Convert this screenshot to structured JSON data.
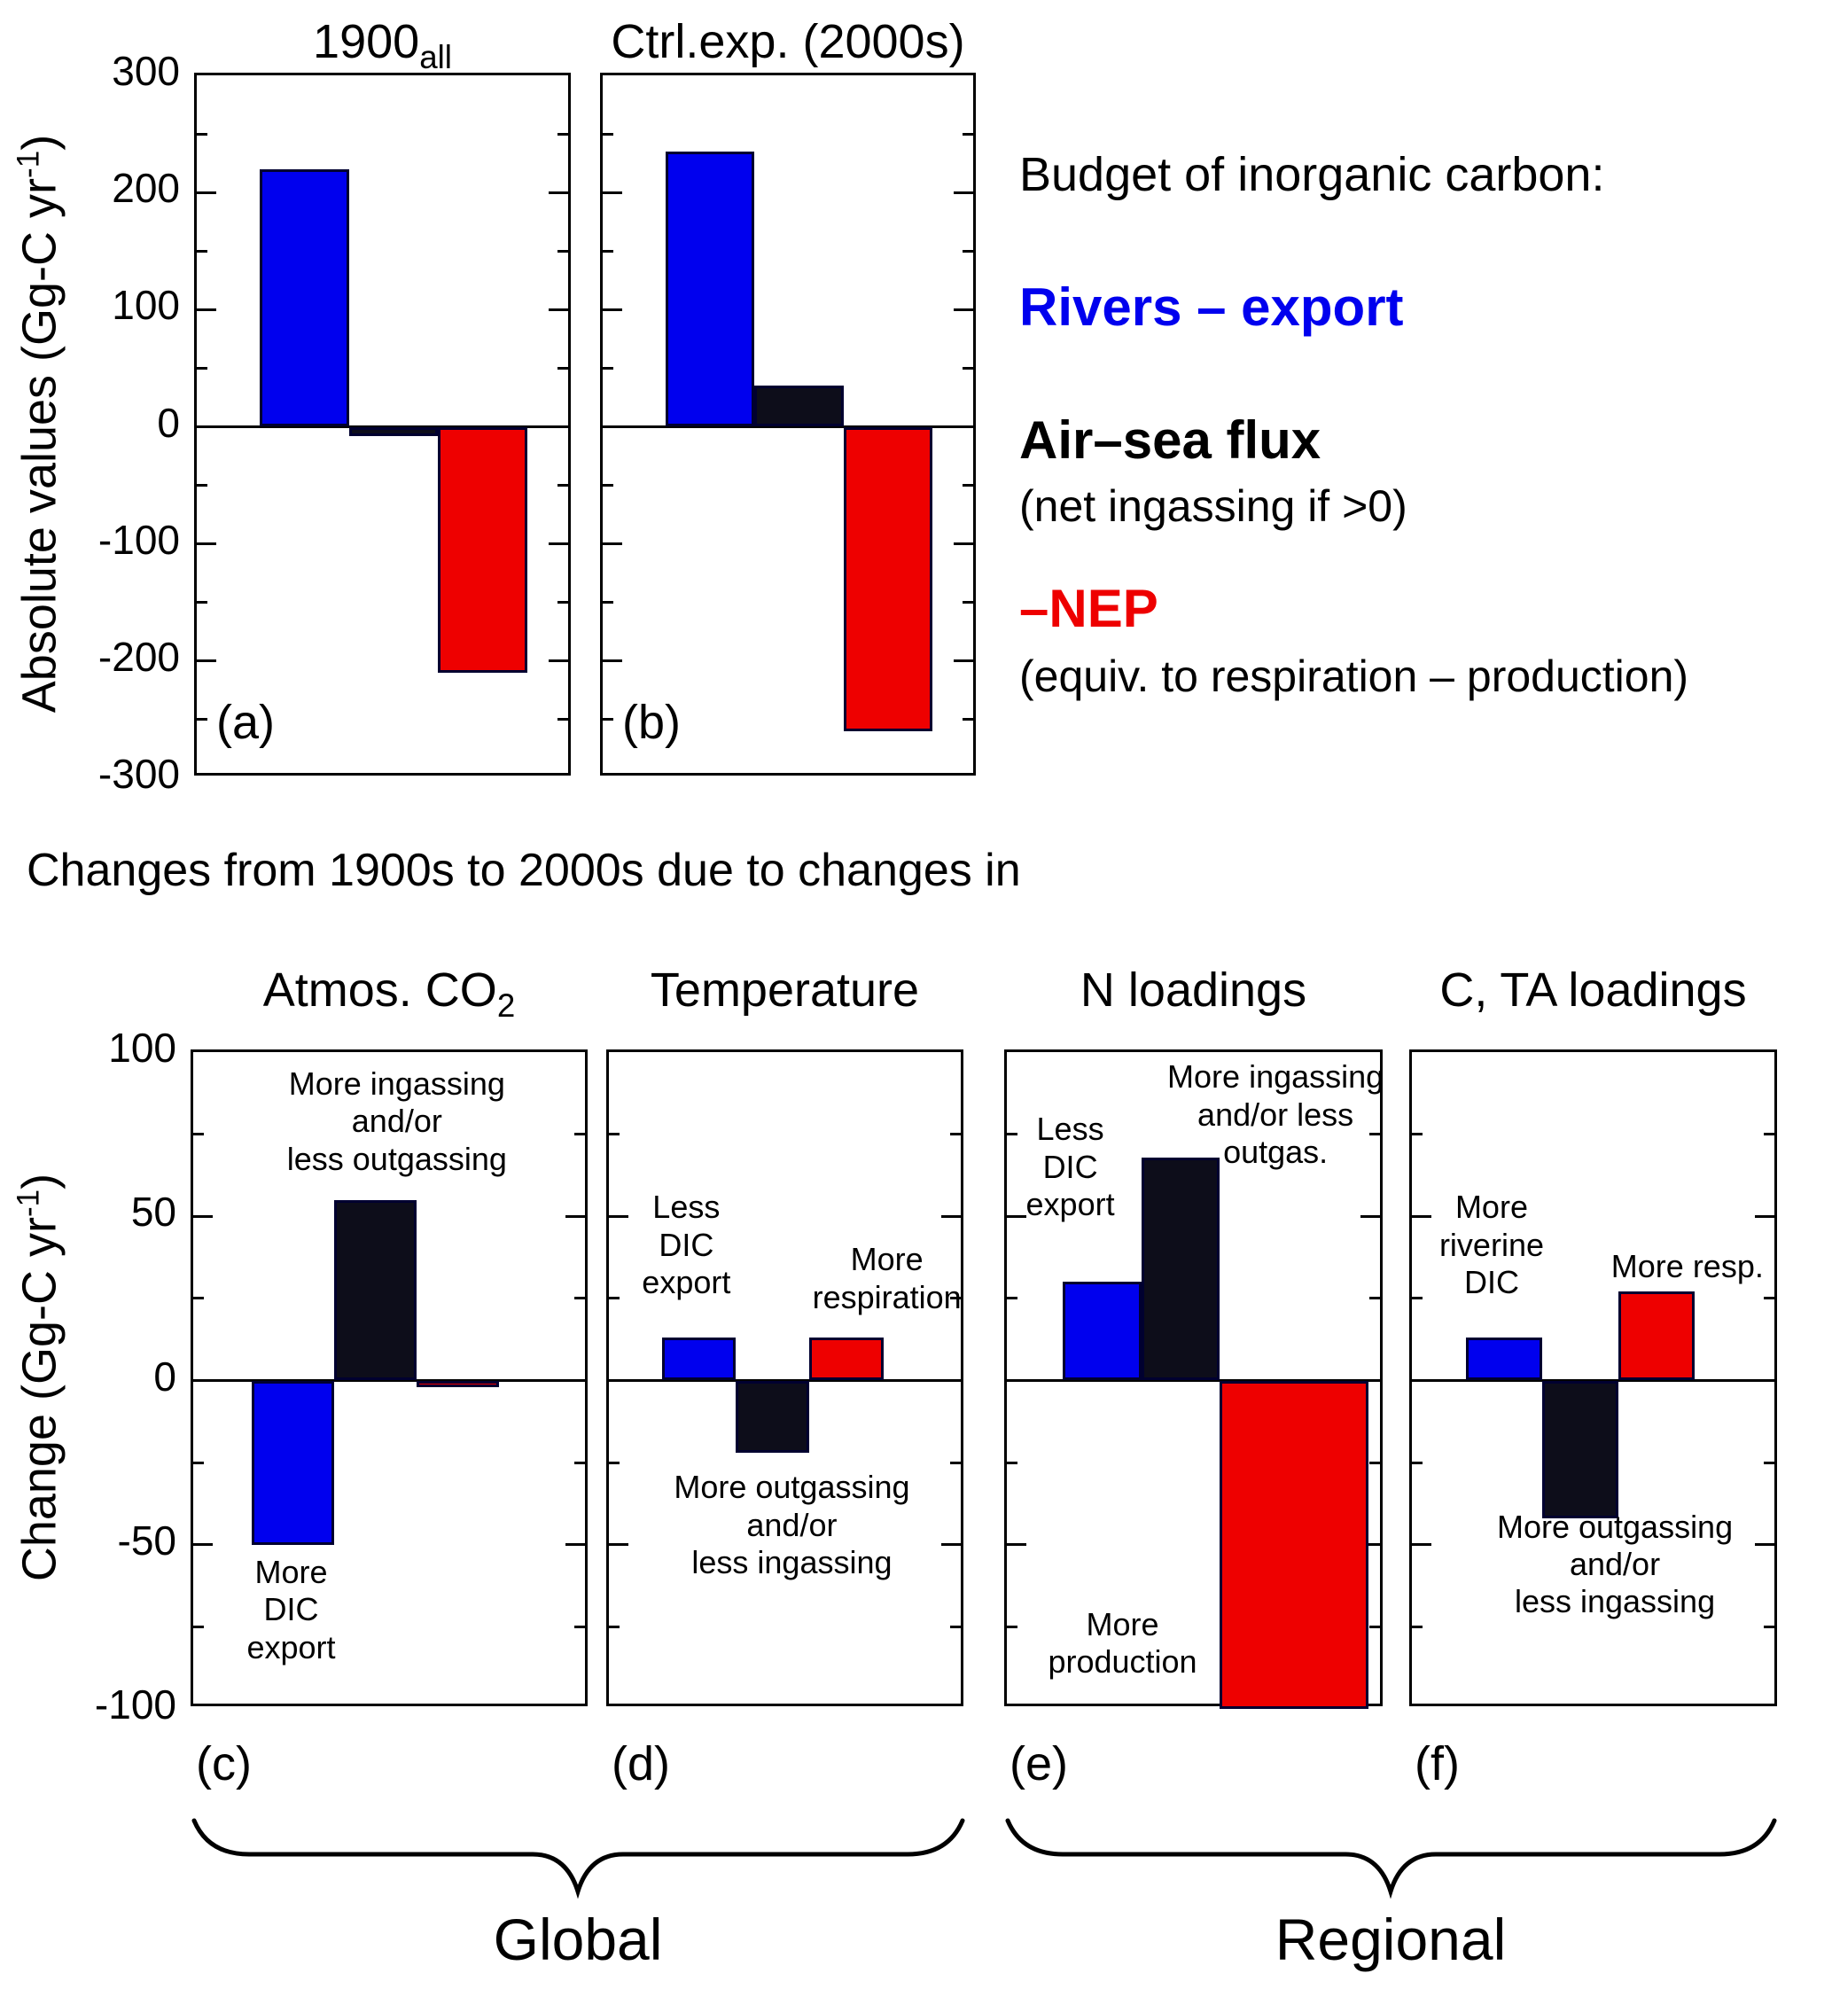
{
  "colors": {
    "blue": "#0000ee",
    "red": "#ee0000",
    "bar_black": "#0d0d1a",
    "black": "#000000",
    "outline": "#000030"
  },
  "top_section": {
    "ylabel_pre": "Absolute values (Gg-C yr",
    "ylabel_sup": "-1",
    "ylabel_post": ")"
  },
  "bottom_section": {
    "ylabel_pre": "Change (Gg-C yr",
    "ylabel_sup": "-1",
    "ylabel_post": ")"
  },
  "legend": {
    "title": "Budget of inorganic carbon:",
    "items": [
      {
        "id": "rivers-export",
        "label": "Rivers – export",
        "color": "#0000ee",
        "sub": ""
      },
      {
        "id": "air-sea-flux",
        "label": "Air–sea flux",
        "color": "#000000",
        "sub": "(net ingassing if >0)"
      },
      {
        "id": "neg-nep",
        "label": "–NEP",
        "color": "#ee0000",
        "sub": "(equiv. to respiration – production)"
      }
    ]
  },
  "section_heading": "Changes from 1900s to 2000s due to changes in",
  "group_labels": [
    "Global",
    "Regional"
  ],
  "chart_data": [
    {
      "type": "bar",
      "name": "absolute-budget",
      "ylabel": "Absolute values (Gg-C yr-1)",
      "ylim": [
        -300,
        300
      ],
      "major_tick": 100,
      "minor_tick": 50,
      "ytick_labels": [
        300,
        200,
        100,
        0,
        -100,
        -200,
        -300
      ],
      "series": [
        "Rivers – export",
        "Air–sea flux",
        "–NEP"
      ],
      "series_ids": [
        "rivers-export",
        "air-sea-flux",
        "neg-nep"
      ],
      "colors": [
        "#0000ee",
        "#0d0d1a",
        "#ee0000"
      ],
      "panels": [
        {
          "id": "a",
          "corner_label": "(a)",
          "title_main": "1900",
          "title_sub": "all",
          "values": [
            220,
            -8,
            -210
          ]
        },
        {
          "id": "b",
          "corner_label": "(b)",
          "title_main": "Ctrl.exp. (2000s)",
          "title_sub": "",
          "values": [
            235,
            35,
            -260
          ]
        }
      ]
    },
    {
      "type": "bar",
      "name": "changes-1900s-to-2000s",
      "ylabel": "Change (Gg-C yr-1)",
      "ylim": [
        -100,
        100
      ],
      "major_tick": 50,
      "minor_tick": 25,
      "ytick_labels": [
        100,
        50,
        0,
        -50,
        -100
      ],
      "series": [
        "Rivers – export",
        "Air–sea flux",
        "–NEP"
      ],
      "series_ids": [
        "rivers-export",
        "air-sea-flux",
        "neg-nep"
      ],
      "colors": [
        "#0000ee",
        "#0d0d1a",
        "#ee0000"
      ],
      "panels": [
        {
          "id": "c",
          "corner_label": "(c)",
          "title_main": "Atmos. CO",
          "title_sub": "2",
          "values": [
            -50,
            55,
            -2
          ],
          "annotations": [
            {
              "text": "More ingassing\nand/or\nless outgassing",
              "x": 52,
              "y": 2
            },
            {
              "text": "More\nDIC\nexport",
              "x": 25,
              "y": 77
            }
          ]
        },
        {
          "id": "d",
          "corner_label": "(d)",
          "title_main": "Temperature",
          "title_sub": "",
          "values": [
            13,
            -22,
            13
          ],
          "annotations": [
            {
              "text": "Less\nDIC\nexport",
              "x": 22,
              "y": 21
            },
            {
              "text": "More\nrespiration",
              "x": 79,
              "y": 29
            },
            {
              "text": "More outgassing\nand/or\nless ingassing",
              "x": 52,
              "y": 64
            }
          ]
        },
        {
          "id": "e",
          "corner_label": "(e)",
          "title_main": "N loadings",
          "title_sub": "",
          "values": [
            30,
            68,
            -100
          ],
          "bar_widths": [
            21,
            21,
            40
          ],
          "annotations": [
            {
              "text": "Less\nDIC\nexport",
              "x": 17,
              "y": 9
            },
            {
              "text": "More ingassing\nand/or less\noutgas.",
              "x": 72,
              "y": 1
            },
            {
              "text": "More\nproduction",
              "x": 31,
              "y": 85
            }
          ]
        },
        {
          "id": "f",
          "corner_label": "(f)",
          "title_main": "C, TA loadings",
          "title_sub": "",
          "values": [
            13,
            -42,
            27
          ],
          "annotations": [
            {
              "text": "More\nriverine\nDIC",
              "x": 22,
              "y": 21
            },
            {
              "text": "More resp.",
              "x": 76,
              "y": 30
            },
            {
              "text": "More outgassing\nand/or\nless ingassing",
              "x": 56,
              "y": 70
            }
          ]
        }
      ]
    }
  ]
}
